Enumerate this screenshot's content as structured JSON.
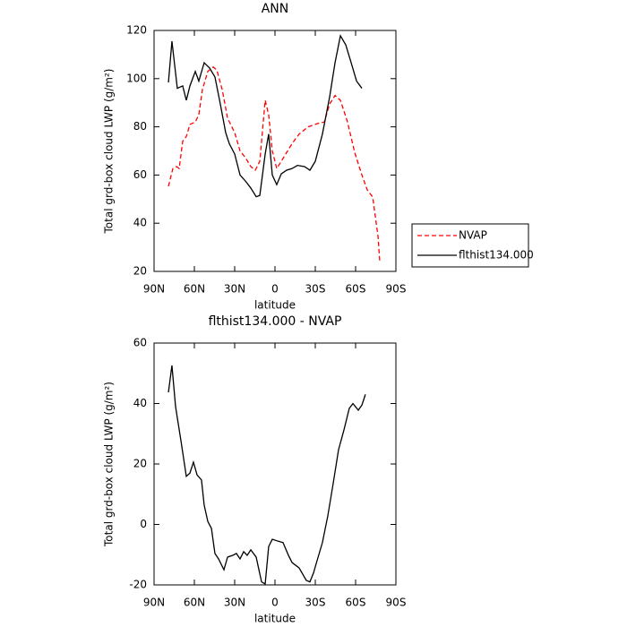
{
  "chart_data": [
    {
      "type": "line",
      "title": "ANN",
      "xlabel": "latitude",
      "ylabel": "Total grd-box cloud LWP (g/m²)",
      "xlim": [
        90,
        -90
      ],
      "xticks": [
        {
          "value": 90,
          "label": "90N"
        },
        {
          "value": 60,
          "label": "60N"
        },
        {
          "value": 30,
          "label": "30N"
        },
        0,
        {
          "value": -30,
          "label": "30S"
        },
        {
          "value": -60,
          "label": "60S"
        },
        {
          "value": -90,
          "label": "90S"
        }
      ],
      "ylim": [
        20,
        120
      ],
      "yticks": [
        20,
        40,
        60,
        80,
        100,
        120
      ],
      "legend": "right",
      "series": [
        {
          "name": "NVAP",
          "color": "#ff0000",
          "style": "dashed",
          "x": [
            79.3,
            76,
            73.3,
            71.3,
            68.7,
            66,
            63.3,
            59.3,
            56.7,
            54,
            50,
            46,
            43.3,
            39.3,
            35.3,
            30,
            26,
            22,
            18,
            14.7,
            11.3,
            7.3,
            4.7,
            2,
            -1.3,
            -4.7,
            -8.7,
            -12.7,
            -18,
            -24.7,
            -31.3,
            -36.7,
            -40.7,
            -44.7,
            -48.7,
            -54,
            -59.3,
            -64.7,
            -68.7,
            -72.7,
            -76.7,
            -78
          ],
          "values": [
            55.3,
            62.7,
            63.5,
            62.7,
            74,
            76,
            81,
            82,
            85,
            95.5,
            103,
            104.8,
            103.6,
            95.5,
            83.6,
            77.6,
            70,
            67.2,
            63.5,
            62,
            65.7,
            91,
            85,
            70,
            62.7,
            65.7,
            69.4,
            73,
            77,
            80,
            81.3,
            82,
            89.5,
            93,
            91,
            82,
            69.4,
            60,
            53.8,
            50.9,
            34.5,
            24
          ]
        },
        {
          "name": "flthist134.000",
          "color": "#000000",
          "style": "solid",
          "x": [
            79.3,
            76.7,
            72.7,
            68.7,
            66,
            63.3,
            59.3,
            56.7,
            52.7,
            48.7,
            44.7,
            40.7,
            36.7,
            34,
            30,
            26,
            22,
            18,
            14,
            11.3,
            7.3,
            4.7,
            2,
            -1.3,
            -4.7,
            -8.7,
            -12.7,
            -16.7,
            -22,
            -26,
            -30,
            -35.3,
            -40.7,
            -44.7,
            -48.7,
            -52.7,
            -56.7,
            -60.7,
            -64.7
          ],
          "values": [
            98.4,
            115.5,
            96,
            97,
            91,
            97,
            103,
            99,
            106.6,
            104.4,
            100.7,
            89.5,
            77.6,
            73,
            68.7,
            60,
            57.5,
            54.6,
            51,
            51.5,
            68.7,
            77,
            60,
            56,
            60.5,
            62,
            62.7,
            64,
            63.5,
            62,
            65.7,
            77,
            92.5,
            106.6,
            117.8,
            114,
            106.6,
            99,
            96
          ]
        }
      ]
    },
    {
      "type": "line",
      "title": "flthist134.000 - NVAP",
      "xlabel": "latitude",
      "ylabel": "Total grd-box cloud LWP (g/m²)",
      "xlim": [
        90,
        -90
      ],
      "xticks": [
        {
          "value": 90,
          "label": "90N"
        },
        {
          "value": 60,
          "label": "60N"
        },
        {
          "value": 30,
          "label": "30N"
        },
        0,
        {
          "value": -30,
          "label": "30S"
        },
        {
          "value": -60,
          "label": "60S"
        },
        {
          "value": -90,
          "label": "90S"
        }
      ],
      "ylim": [
        -20,
        60
      ],
      "yticks": [
        -20,
        0,
        20,
        40,
        60
      ],
      "series": [
        {
          "color": "#000000",
          "style": "solid",
          "x": [
            79.3,
            76.7,
            74,
            70,
            66,
            63.3,
            60.7,
            58,
            54.7,
            52.7,
            50,
            47.3,
            44.7,
            42,
            38,
            35.3,
            31.3,
            28.7,
            26,
            23.3,
            20.7,
            18,
            14,
            10,
            7.3,
            4.7,
            2,
            -2,
            -6,
            -10,
            -12.7,
            -18,
            -23.3,
            -26,
            -28.7,
            -31.3,
            -35.3,
            -39.3,
            -43.3,
            -47.3,
            -51.3,
            -55.3,
            -58,
            -62,
            -64.7,
            -67.3
          ],
          "values": [
            43.7,
            52.6,
            39,
            27.7,
            15.9,
            17,
            20.6,
            16.4,
            14.7,
            6.4,
            1,
            -1.3,
            -9.6,
            -11.4,
            -15,
            -10.8,
            -10.2,
            -9.6,
            -11.4,
            -9,
            -10.2,
            -8.4,
            -10.8,
            -19,
            -19.7,
            -7.3,
            -4.9,
            -5.5,
            -6,
            -10.2,
            -12.6,
            -14.4,
            -18.5,
            -19,
            -16,
            -12,
            -6,
            2.8,
            13.5,
            24.7,
            31.2,
            38.4,
            40,
            37.8,
            39.5,
            43
          ]
        }
      ]
    }
  ]
}
